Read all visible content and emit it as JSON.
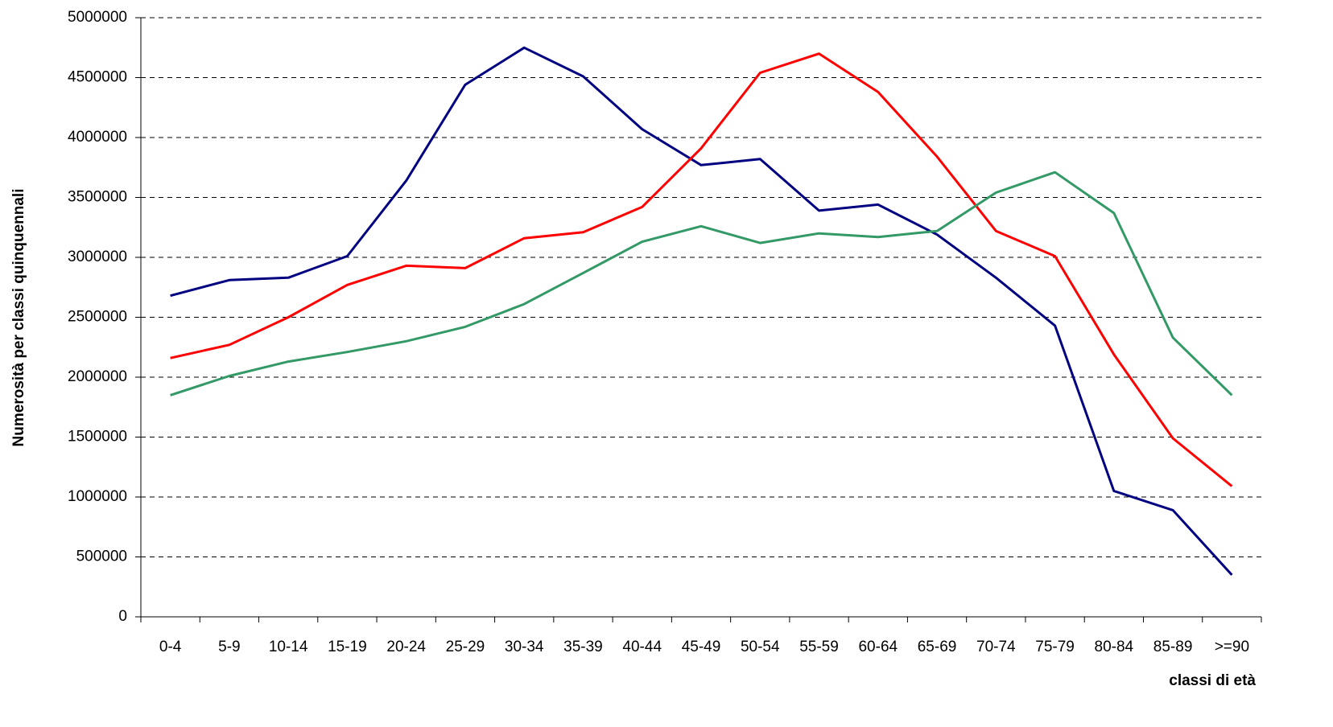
{
  "chart_data": {
    "type": "line",
    "ylabel": "Numerosità per classi quinquennali",
    "xlabel": "classi di età",
    "categories": [
      "0-4",
      "5-9",
      "10-14",
      "15-19",
      "20-24",
      "25-29",
      "30-34",
      "35-39",
      "40-44",
      "45-49",
      "50-54",
      "55-59",
      "60-64",
      "65-69",
      "70-74",
      "75-79",
      "80-84",
      "85-89",
      ">=90"
    ],
    "series": [
      {
        "color": "#000080",
        "values": [
          2680000,
          2810000,
          2830000,
          3010000,
          3640000,
          4440000,
          4750000,
          4510000,
          4070000,
          3770000,
          3820000,
          3390000,
          3440000,
          3190000,
          2830000,
          2430000,
          1050000,
          890000,
          350000
        ]
      },
      {
        "color": "#ff0000",
        "values": [
          2160000,
          2270000,
          2500000,
          2770000,
          2930000,
          2910000,
          3160000,
          3210000,
          3420000,
          3910000,
          4540000,
          4700000,
          4380000,
          3840000,
          3220000,
          3010000,
          2190000,
          1490000,
          1090000
        ]
      },
      {
        "color": "#339966",
        "values": [
          1850000,
          2010000,
          2130000,
          2210000,
          2300000,
          2420000,
          2610000,
          2870000,
          3130000,
          3260000,
          3120000,
          3200000,
          3170000,
          3220000,
          3540000,
          3710000,
          3370000,
          2330000,
          1850000
        ]
      }
    ],
    "ylim": [
      0,
      5000000
    ],
    "yticks": [
      0,
      500000,
      1000000,
      1500000,
      2000000,
      2500000,
      3000000,
      3500000,
      4000000,
      4500000,
      5000000
    ],
    "grid": true
  }
}
